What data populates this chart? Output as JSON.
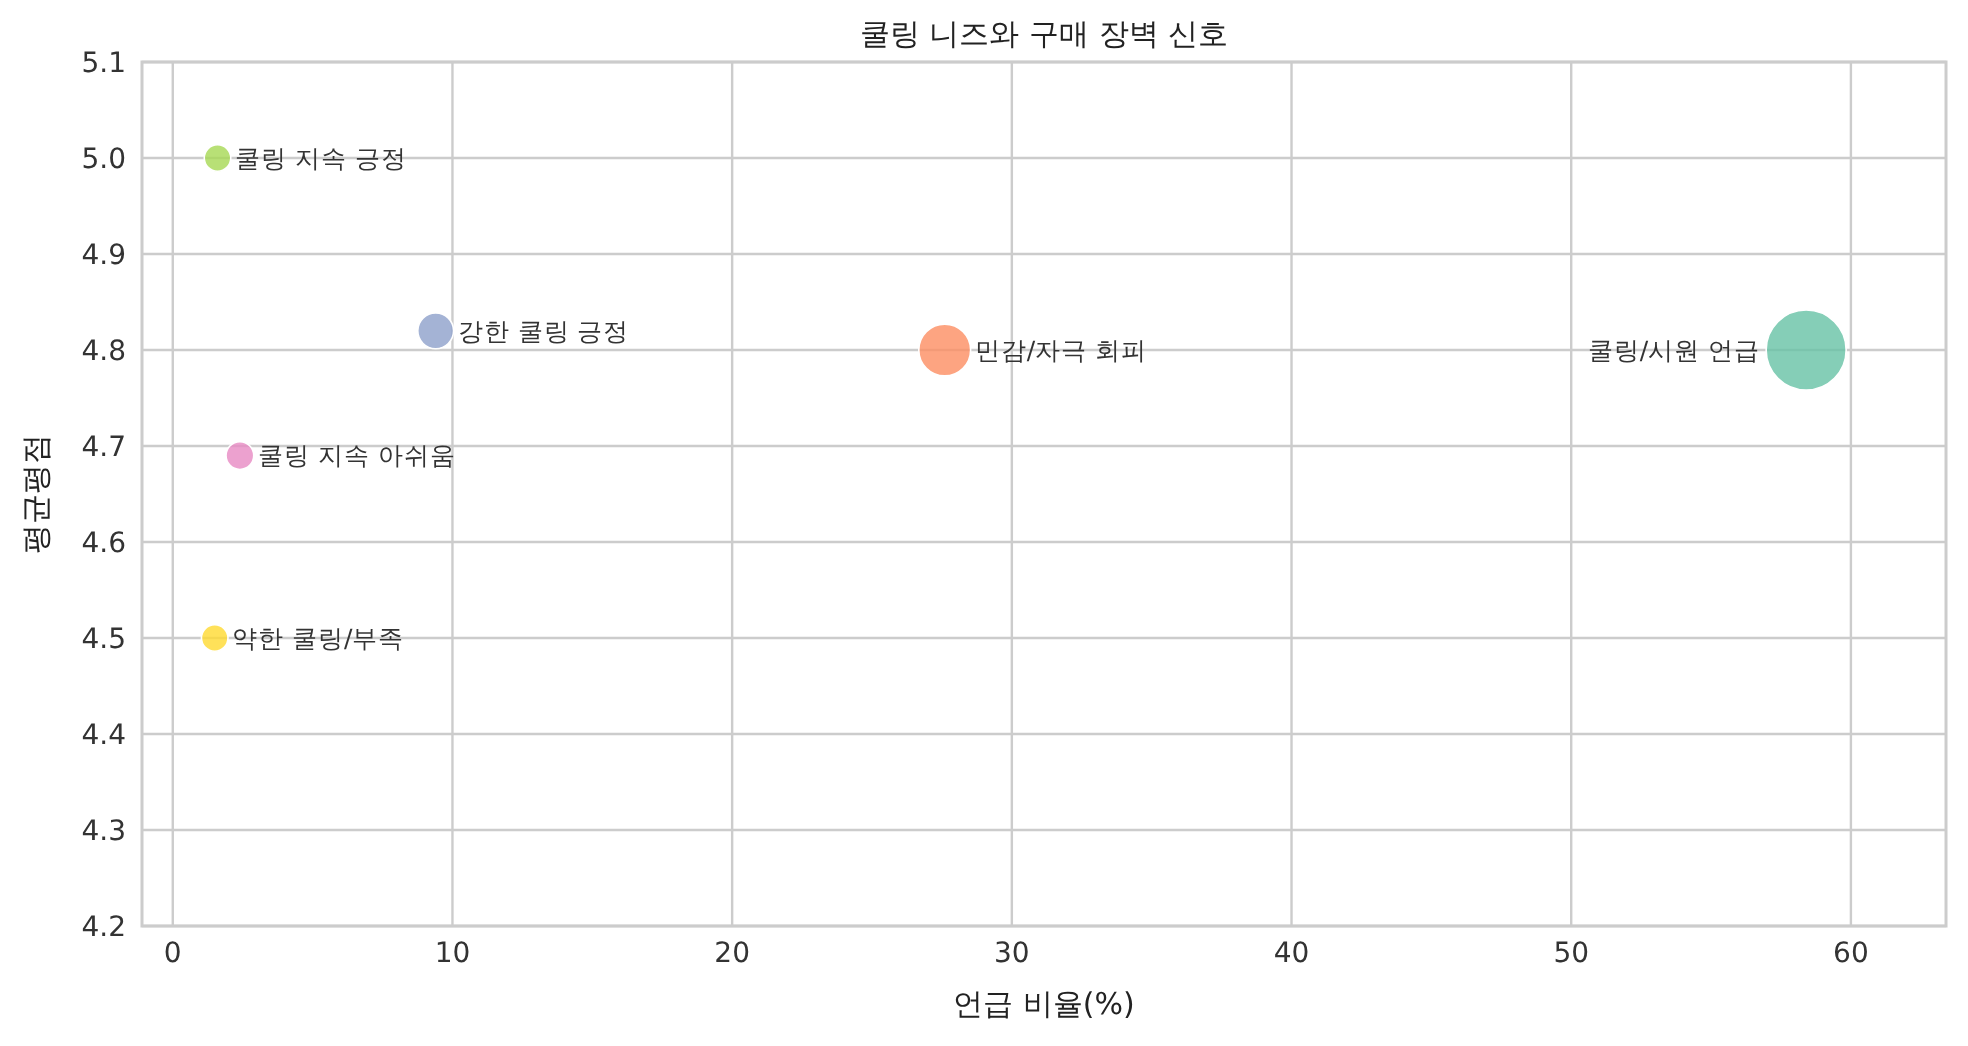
{
  "chart_data": {
    "type": "bubble",
    "title": "쿨링 니즈와 구매 장벽 신호",
    "xlabel": "언급 비율(%)",
    "ylabel": "평균평점",
    "xlim": [
      -1.1,
      63.4
    ],
    "xticks": [
      0,
      10,
      20,
      30,
      40,
      50,
      60
    ],
    "ylim": [
      4.2,
      5.1
    ],
    "yticks": [
      {
        "value": 4.2,
        "label": "4.2"
      },
      {
        "value": 4.3,
        "label": "4.3"
      },
      {
        "value": 4.4,
        "label": "4.4"
      },
      {
        "value": 4.5,
        "label": "4.5"
      },
      {
        "value": 4.6,
        "label": "4.6"
      },
      {
        "value": 4.7,
        "label": "4.7"
      },
      {
        "value": 4.8,
        "label": "4.8"
      },
      {
        "value": 4.9,
        "label": "4.9"
      },
      {
        "value": 5.0,
        "label": "5.0"
      },
      {
        "value": 5.1,
        "label": "5.1"
      }
    ],
    "grid": true,
    "series": [
      {
        "name": "쿨링/시원 언급",
        "color": "#66c2a5",
        "x": [
          58.4
        ],
        "values": [
          4.8
        ],
        "sizes": [
          1
        ]
      },
      {
        "name": "민감/자극 회피",
        "color": "#fc8d62",
        "x": [
          27.6
        ],
        "values": [
          4.8
        ],
        "sizes": [
          0.42
        ]
      },
      {
        "name": "강한 쿨링 긍정",
        "color": "#8da0cb",
        "x": [
          9.4
        ],
        "values": [
          4.82
        ],
        "sizes": [
          0.2
        ]
      },
      {
        "name": "쿨링 지속 아쉬움",
        "color": "#e78ac3",
        "x": [
          2.4
        ],
        "values": [
          4.69
        ],
        "sizes": [
          0.12
        ]
      },
      {
        "name": "쿨링 지속 긍정",
        "color": "#a6d854",
        "x": [
          1.6
        ],
        "values": [
          5.0
        ],
        "sizes": [
          0.11
        ]
      },
      {
        "name": "약한 쿨링/부족",
        "color": "#ffd92f",
        "x": [
          1.5
        ],
        "values": [
          4.5
        ],
        "sizes": [
          0.11
        ]
      }
    ]
  }
}
